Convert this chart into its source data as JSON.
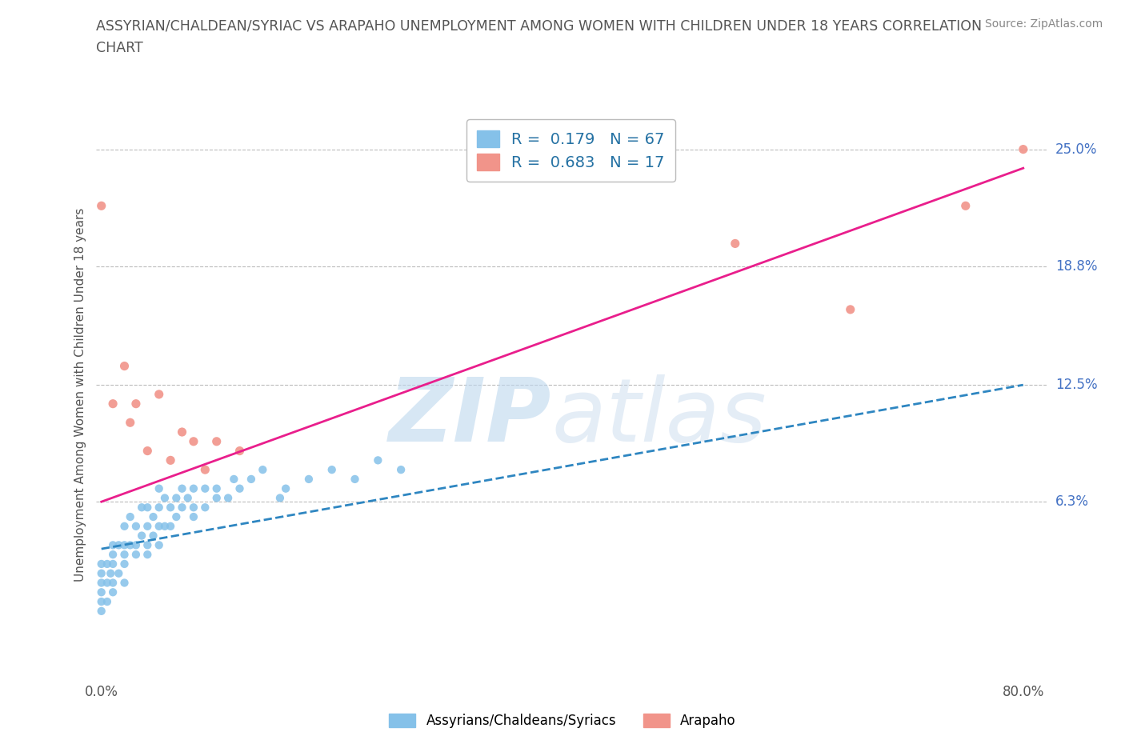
{
  "title_line1": "ASSYRIAN/CHALDEAN/SYRIAC VS ARAPAHO UNEMPLOYMENT AMONG WOMEN WITH CHILDREN UNDER 18 YEARS CORRELATION",
  "title_line2": "CHART",
  "source_text": "Source: ZipAtlas.com",
  "ylabel": "Unemployment Among Women with Children Under 18 years",
  "y_tick_labels": [
    "25.0%",
    "18.8%",
    "12.5%",
    "6.3%"
  ],
  "y_tick_values": [
    0.25,
    0.188,
    0.125,
    0.063
  ],
  "xlim": [
    -0.005,
    0.82
  ],
  "ylim": [
    -0.03,
    0.27
  ],
  "R_blue": 0.179,
  "N_blue": 67,
  "R_pink": 0.683,
  "N_pink": 17,
  "blue_color": "#85C1E9",
  "pink_color": "#F1948A",
  "blue_line_color": "#2E86C1",
  "pink_line_color": "#E91E8C",
  "legend_label_blue": "Assyrians/Chaldeans/Syriacs",
  "legend_label_pink": "Arapaho",
  "background_color": "#FFFFFF",
  "grid_color": "#BBBBBB",
  "title_color": "#666666",
  "blue_scatter_x": [
    0.0,
    0.0,
    0.0,
    0.0,
    0.0,
    0.0,
    0.005,
    0.005,
    0.005,
    0.008,
    0.01,
    0.01,
    0.01,
    0.01,
    0.01,
    0.015,
    0.015,
    0.02,
    0.02,
    0.02,
    0.02,
    0.02,
    0.025,
    0.025,
    0.03,
    0.03,
    0.03,
    0.035,
    0.035,
    0.04,
    0.04,
    0.04,
    0.04,
    0.045,
    0.045,
    0.05,
    0.05,
    0.05,
    0.05,
    0.055,
    0.055,
    0.06,
    0.06,
    0.065,
    0.065,
    0.07,
    0.07,
    0.075,
    0.08,
    0.08,
    0.08,
    0.09,
    0.09,
    0.1,
    0.1,
    0.11,
    0.115,
    0.12,
    0.13,
    0.14,
    0.155,
    0.16,
    0.18,
    0.2,
    0.22,
    0.24,
    0.26
  ],
  "blue_scatter_y": [
    0.02,
    0.01,
    0.03,
    0.005,
    0.015,
    0.025,
    0.02,
    0.03,
    0.01,
    0.025,
    0.03,
    0.04,
    0.02,
    0.015,
    0.035,
    0.025,
    0.04,
    0.03,
    0.04,
    0.05,
    0.02,
    0.035,
    0.04,
    0.055,
    0.04,
    0.05,
    0.035,
    0.045,
    0.06,
    0.04,
    0.05,
    0.06,
    0.035,
    0.045,
    0.055,
    0.05,
    0.04,
    0.06,
    0.07,
    0.05,
    0.065,
    0.06,
    0.05,
    0.065,
    0.055,
    0.06,
    0.07,
    0.065,
    0.06,
    0.07,
    0.055,
    0.07,
    0.06,
    0.07,
    0.065,
    0.065,
    0.075,
    0.07,
    0.075,
    0.08,
    0.065,
    0.07,
    0.075,
    0.08,
    0.075,
    0.085,
    0.08
  ],
  "pink_scatter_x": [
    0.0,
    0.01,
    0.02,
    0.025,
    0.03,
    0.04,
    0.05,
    0.06,
    0.07,
    0.08,
    0.09,
    0.1,
    0.12,
    0.55,
    0.65,
    0.75,
    0.8
  ],
  "pink_scatter_y": [
    0.22,
    0.115,
    0.135,
    0.105,
    0.115,
    0.09,
    0.12,
    0.085,
    0.1,
    0.095,
    0.08,
    0.095,
    0.09,
    0.2,
    0.165,
    0.22,
    0.25
  ],
  "blue_trend_x": [
    0.0,
    0.8
  ],
  "blue_trend_y": [
    0.038,
    0.125
  ],
  "pink_trend_x": [
    0.0,
    0.8
  ],
  "pink_trend_y": [
    0.063,
    0.24
  ]
}
